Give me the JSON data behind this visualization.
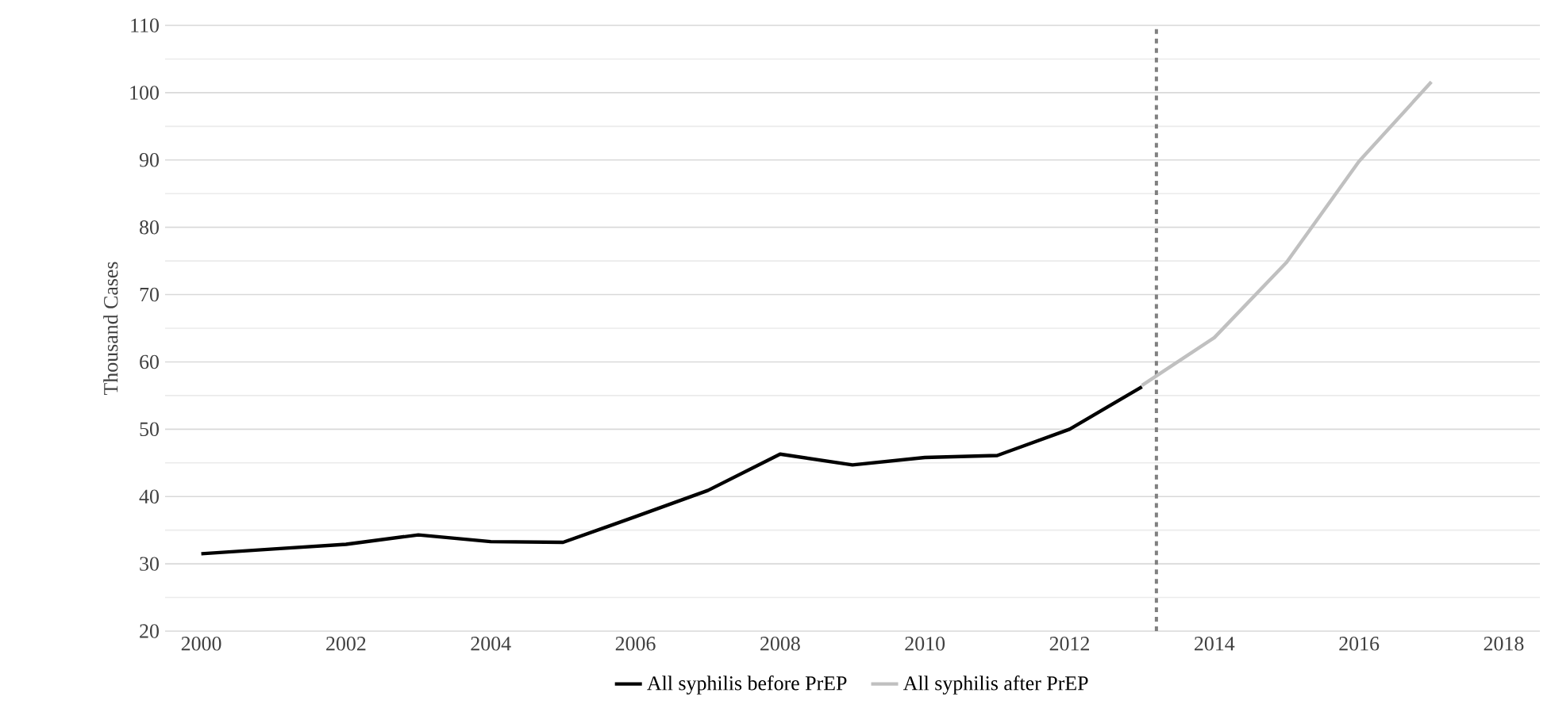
{
  "chart_data": {
    "type": "line",
    "ylabel": "Thousand Cases",
    "xlim": [
      1999.5,
      2018.5
    ],
    "xticks": [
      2000,
      2002,
      2004,
      2006,
      2008,
      2010,
      2012,
      2014,
      2016,
      2018
    ],
    "ylim": [
      20,
      110
    ],
    "yticks": [
      20,
      30,
      40,
      50,
      60,
      70,
      80,
      90,
      100,
      110
    ],
    "grid": "y",
    "legend": "bottom",
    "marker": "none",
    "line_style": "solid",
    "series": [
      {
        "name": "All syphilis before PrEP",
        "color": "#000000",
        "x": [
          2000,
          2001,
          2002,
          2003,
          2004,
          2005,
          2006,
          2007,
          2008,
          2009,
          2010,
          2011,
          2012,
          2013
        ],
        "values": [
          31.5,
          32.2,
          32.9,
          34.3,
          33.3,
          33.2,
          37.0,
          40.9,
          46.3,
          44.7,
          45.8,
          46.1,
          50.0,
          56.3
        ]
      },
      {
        "name": "All syphilis after PrEP",
        "color": "#c0c0c0",
        "x": [
          2013,
          2014,
          2015,
          2016,
          2017
        ],
        "values": [
          56.5,
          63.6,
          74.8,
          89.8,
          101.6
        ]
      }
    ],
    "ref_lines": [
      {
        "axis": "x",
        "value": 2013.2,
        "color": "#808080",
        "line_style": "dashed"
      }
    ]
  }
}
